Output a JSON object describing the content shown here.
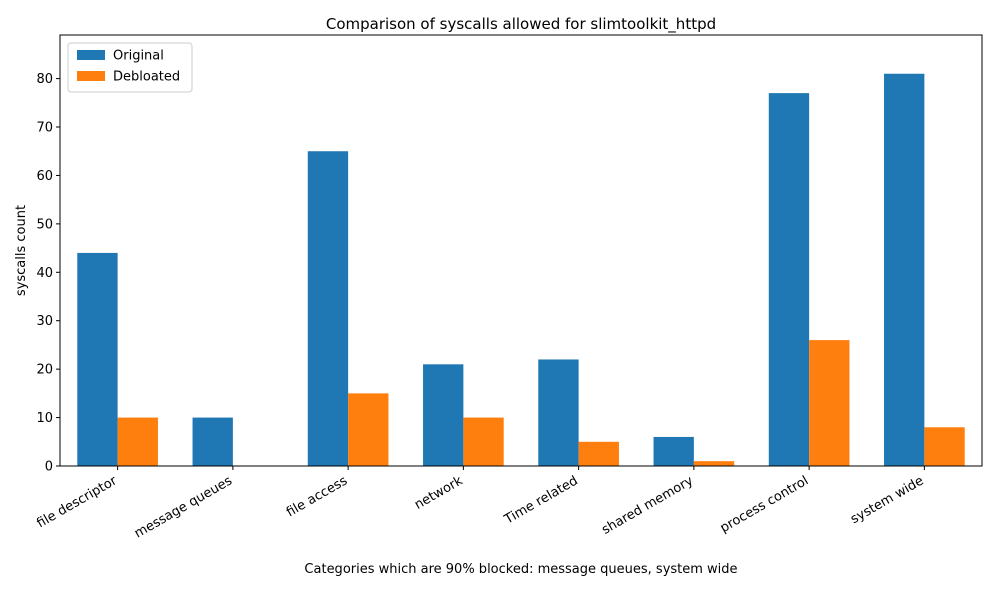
{
  "chart_data": {
    "type": "bar",
    "title": "Comparison of syscalls allowed for slimtoolkit_httpd",
    "xlabel": "Categories which are 90% blocked: message queues, system wide",
    "ylabel": "syscalls count",
    "categories": [
      "file descriptor",
      "message queues",
      "file access",
      "network",
      "Time related",
      "shared memory",
      "process control",
      "system wide"
    ],
    "series": [
      {
        "name": "Original",
        "color": "#1f77b4",
        "values": [
          44,
          10,
          65,
          21,
          22,
          6,
          77,
          81
        ]
      },
      {
        "name": "Debloated",
        "color": "#ff7f0e",
        "values": [
          10,
          0,
          15,
          10,
          5,
          1,
          26,
          8
        ]
      }
    ],
    "ylim": [
      0,
      89
    ],
    "yticks": [
      0,
      10,
      20,
      30,
      40,
      50,
      60,
      70,
      80
    ],
    "legend_position": "top-left",
    "grid": false
  }
}
